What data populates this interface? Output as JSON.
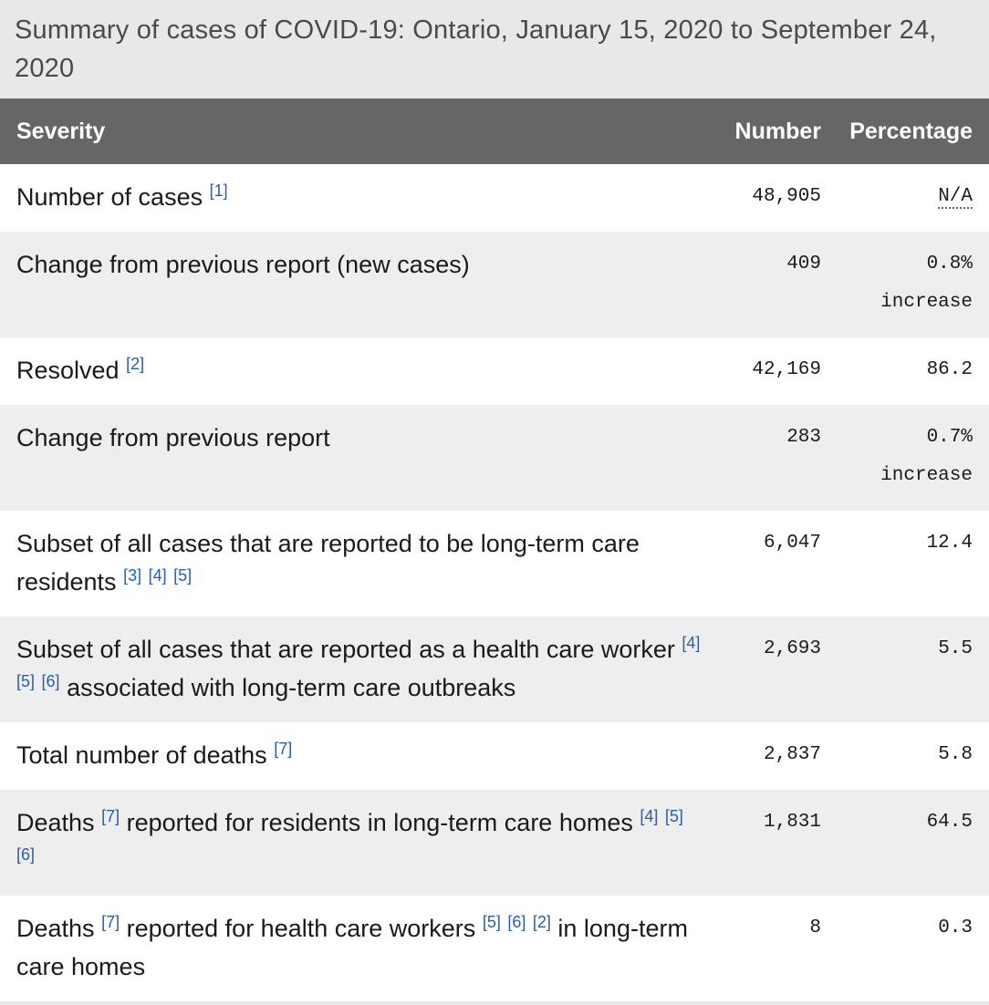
{
  "caption": "Summary of cases of COVID-19: Ontario, January 15, 2020 to September 24, 2020",
  "headers": {
    "severity": "Severity",
    "number": "Number",
    "percentage": "Percentage"
  },
  "rows": [
    {
      "label": "Number of cases",
      "refs_a": [
        "[1]"
      ],
      "number": "48,905",
      "pct_1": "N/A",
      "pct_2": ""
    },
    {
      "label": "Change from previous report (new cases)",
      "number": "409",
      "pct_1": "0.8%",
      "pct_2": "increase"
    },
    {
      "label": "Resolved",
      "refs_a": [
        "[2]"
      ],
      "number": "42,169",
      "pct_1": "86.2",
      "pct_2": ""
    },
    {
      "label": "Change from previous report",
      "number": "283",
      "pct_1": "0.7%",
      "pct_2": "increase"
    },
    {
      "label": "Subset of all cases that are reported to be long-term care residents",
      "refs_a": [
        "[3]",
        "[4]",
        "[5]"
      ],
      "number": "6,047",
      "pct_1": "12.4",
      "pct_2": ""
    },
    {
      "label_a": "Subset of all cases that are reported as a health care worker",
      "refs_a": [
        "[4]",
        "[5]",
        "[6]"
      ],
      "label_b": "associated with long-term care outbreaks",
      "number": "2,693",
      "pct_1": "5.5",
      "pct_2": ""
    },
    {
      "label": "Total number of deaths",
      "refs_a": [
        "[7]"
      ],
      "number": "2,837",
      "pct_1": "5.8",
      "pct_2": ""
    },
    {
      "label_a": "Deaths",
      "refs_a": [
        "[7]"
      ],
      "label_b": "reported for residents in long-term care homes",
      "refs_b": [
        "[4]",
        "[5]",
        "[6]"
      ],
      "number": "1,831",
      "pct_1": "64.5",
      "pct_2": ""
    },
    {
      "label_a": "Deaths",
      "refs_a": [
        "[7]"
      ],
      "label_b": "reported for health care workers",
      "refs_b": [
        "[5]",
        "[6]",
        "[2]"
      ],
      "label_c": "in long-term care homes",
      "number": "8",
      "pct_1": "0.3",
      "pct_2": ""
    }
  ]
}
